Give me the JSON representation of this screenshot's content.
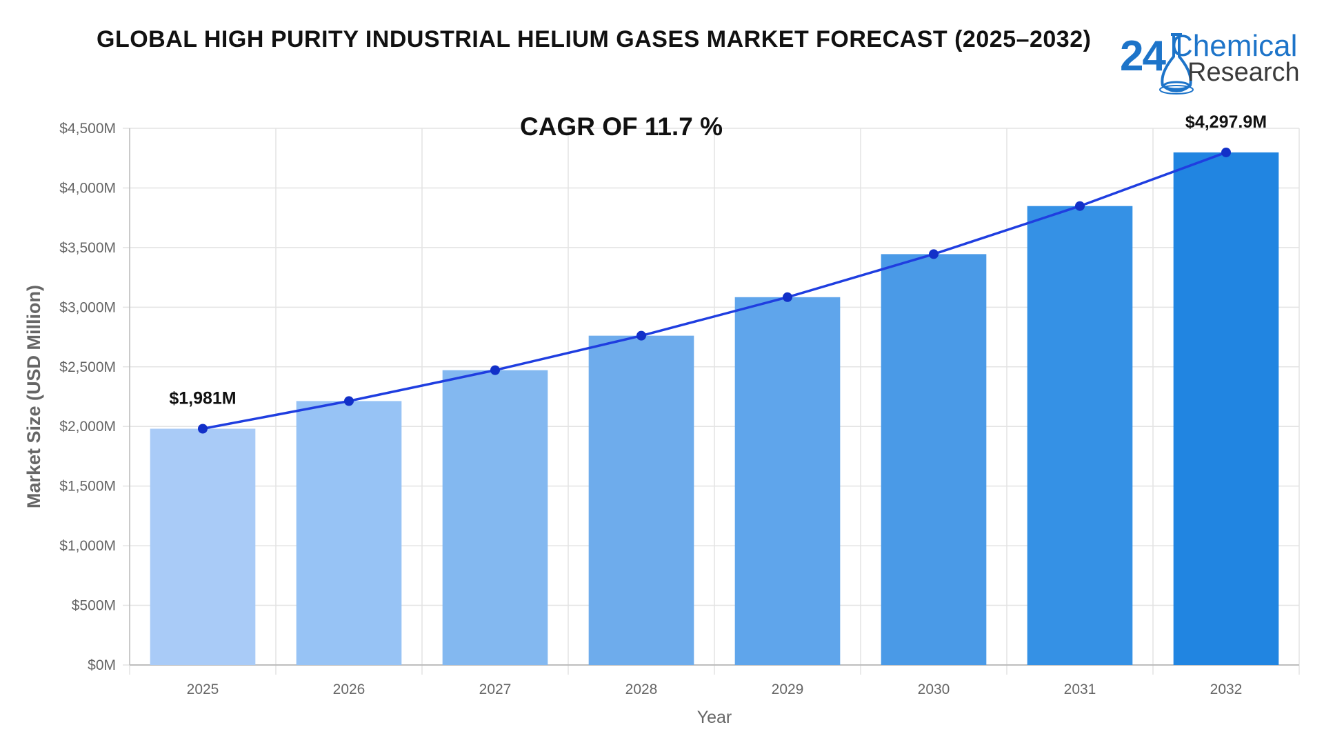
{
  "header": {
    "title": "GLOBAL HIGH PURITY INDUSTRIAL HELIUM GASES MARKET FORECAST (2025–2032)"
  },
  "logo": {
    "number": "24",
    "word1": "Chemical",
    "word2": "Research",
    "colors": {
      "blue": "#1d74c9",
      "gray": "#3b3b3b"
    }
  },
  "chart_data": {
    "type": "bar",
    "annotation": "CAGR OF 11.7  %",
    "categories": [
      "2025",
      "2026",
      "2027",
      "2028",
      "2029",
      "2030",
      "2031",
      "2032"
    ],
    "values": [
      1981,
      2213,
      2472,
      2761,
      3084,
      3445,
      3848,
      4297.9
    ],
    "trend_line": [
      1981,
      2213,
      2472,
      2761,
      3084,
      3445,
      3848,
      4297.9
    ],
    "data_labels": [
      {
        "category": "2025",
        "text": "$1,981M"
      },
      {
        "category": "2032",
        "text": "$4,297.9M"
      }
    ],
    "xlabel": "Year",
    "ylabel": "Market Size (USD Million)",
    "ylim": [
      0,
      4500
    ],
    "yticks": [
      0,
      500,
      1000,
      1500,
      2000,
      2500,
      3000,
      3500,
      4000,
      4500
    ],
    "ytick_labels": [
      "$0M",
      "$500M",
      "$1,000M",
      "$1,500M",
      "$2,000M",
      "$2,500M",
      "$3,000M",
      "$3,500M",
      "$4,000M",
      "$4,500M"
    ],
    "grid": true,
    "bar_colors": [
      "#a9cbf7",
      "#97c3f5",
      "#83b8f0",
      "#6eacec",
      "#5fa5eb",
      "#4a9ae7",
      "#3591e5",
      "#2185e1"
    ],
    "line_color": "#1f3ee0"
  }
}
